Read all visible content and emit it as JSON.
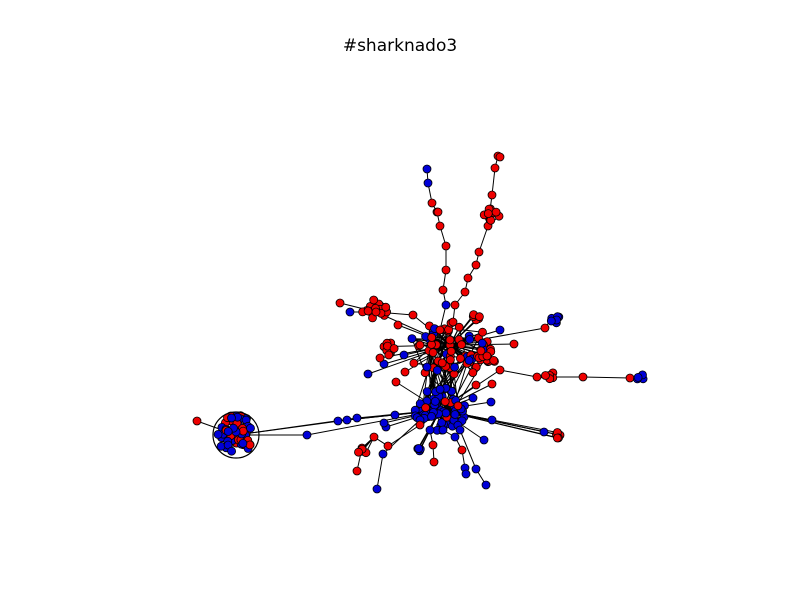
{
  "figure": {
    "title": "#sharknado3"
  },
  "colors": {
    "red_node": "#ee0000",
    "blue_node": "#0000d8",
    "edge": "#000000",
    "node_outline": "#000000",
    "background": "#ffffff"
  }
}
